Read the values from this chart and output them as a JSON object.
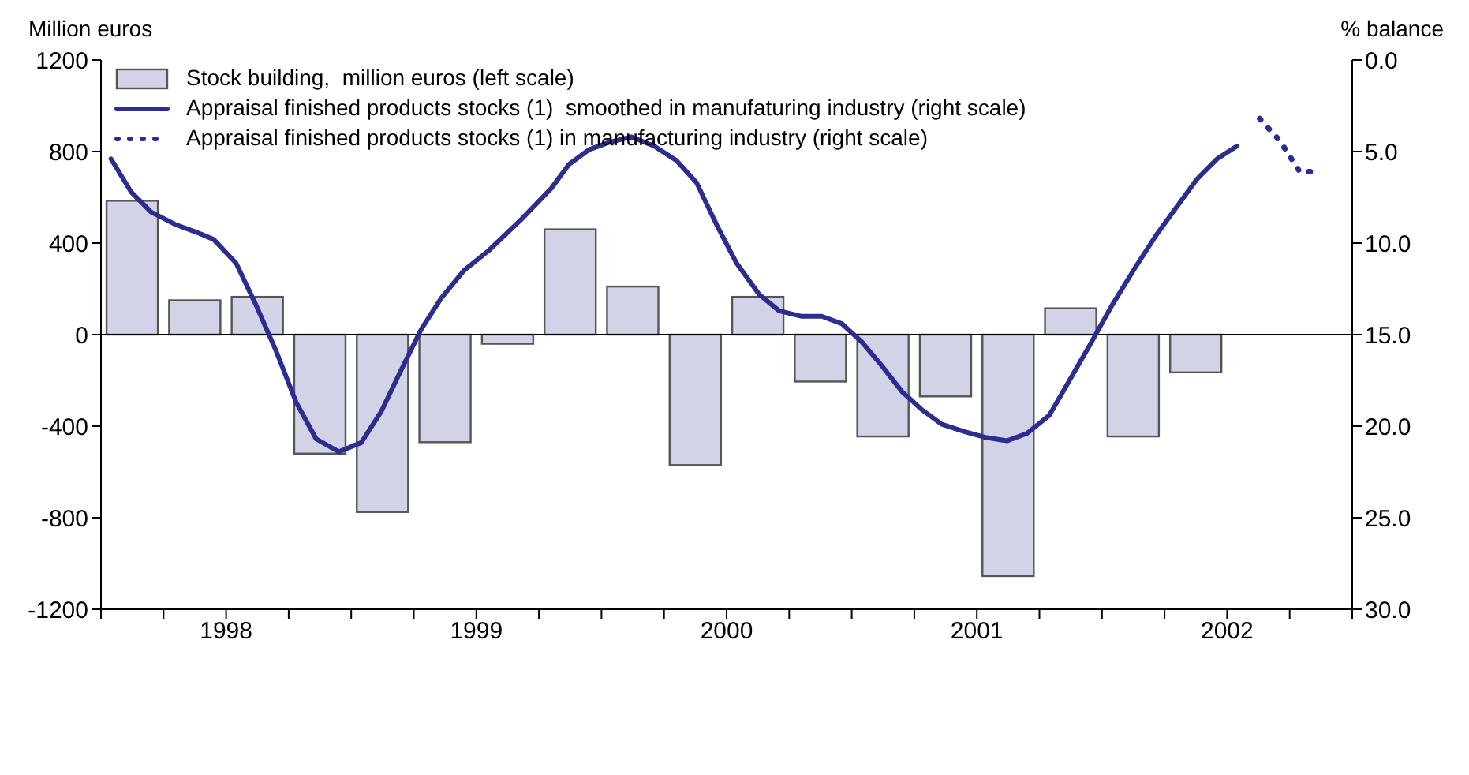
{
  "chart_data": {
    "type": "bar",
    "ylabel": "Million euros",
    "y2label": "% balance",
    "xlim": [
      1998,
      2003
    ],
    "xticks": [
      {
        "value": 1998,
        "label": null
      },
      {
        "value": 1998.25,
        "label": null
      },
      {
        "value": 1998.5,
        "label": "1998"
      },
      {
        "value": 1998.75,
        "label": null
      },
      {
        "value": 1999,
        "label": null
      },
      {
        "value": 1999.25,
        "label": null
      },
      {
        "value": 1999.5,
        "label": "1999"
      },
      {
        "value": 1999.75,
        "label": null
      },
      {
        "value": 2000,
        "label": null
      },
      {
        "value": 2000.25,
        "label": null
      },
      {
        "value": 2000.5,
        "label": "2000"
      },
      {
        "value": 2000.75,
        "label": null
      },
      {
        "value": 2001,
        "label": null
      },
      {
        "value": 2001.25,
        "label": null
      },
      {
        "value": 2001.5,
        "label": "2001"
      },
      {
        "value": 2001.75,
        "label": null
      },
      {
        "value": 2002,
        "label": null
      },
      {
        "value": 2002.25,
        "label": null
      },
      {
        "value": 2002.5,
        "label": "2002"
      },
      {
        "value": 2002.75,
        "label": null
      },
      {
        "value": 2003,
        "label": null
      }
    ],
    "ylim": [
      -1200,
      1200
    ],
    "yticks": [
      -1200,
      -800,
      -400,
      0,
      400,
      800,
      1200
    ],
    "y2lim": [
      30,
      0
    ],
    "y2ticks": [
      {
        "value": 0,
        "label": "0.0"
      },
      {
        "value": 5,
        "label": "5.0"
      },
      {
        "value": 10,
        "label": "10.0"
      },
      {
        "value": 15,
        "label": "15.0"
      },
      {
        "value": 20,
        "label": "20.0"
      },
      {
        "value": 25,
        "label": "25.0"
      },
      {
        "value": 30,
        "label": "30.0"
      }
    ],
    "legend": "top left",
    "marker": "none",
    "ref_lines": [
      {
        "axis": "y",
        "value": 0,
        "color": "#000000"
      }
    ],
    "series": [
      {
        "name": "Stock building,  million euros (left scale)",
        "color": "#d3d3e8",
        "x": [
          1998.125,
          1998.375,
          1998.625,
          1998.875,
          1999.125,
          1999.375,
          1999.625,
          1999.875,
          2000.125,
          2000.375,
          2000.625,
          2000.875,
          2001.125,
          2001.375,
          2001.625,
          2001.875,
          2002.125,
          2002.375
        ],
        "values": [
          585,
          150,
          165,
          -520,
          -775,
          -470,
          -40,
          460,
          210,
          -570,
          165,
          -205,
          -445,
          -270,
          -1055,
          115,
          -445,
          -165
        ]
      },
      {
        "type": "line",
        "axis": "y2",
        "line_style": "solid",
        "name": "Appraisal finished products stocks (1)  smoothed in manufaturing industry (right scale)",
        "color": "#2b2e8f",
        "x": [
          1998.04,
          1998.12,
          1998.2,
          1998.3,
          1998.38,
          1998.45,
          1998.54,
          1998.62,
          1998.7,
          1998.78,
          1998.86,
          1998.95,
          1999.04,
          1999.12,
          1999.19,
          1999.28,
          1999.36,
          1999.45,
          1999.55,
          1999.68,
          1999.8,
          1999.87,
          1999.95,
          2000.03,
          2000.12,
          2000.21,
          2000.3,
          2000.38,
          2000.46,
          2000.54,
          2000.63,
          2000.71,
          2000.8,
          2000.88,
          2000.96,
          2001.04,
          2001.12,
          2001.2,
          2001.28,
          2001.36,
          2001.45,
          2001.53,
          2001.62,
          2001.7,
          2001.79,
          2001.87,
          2001.95,
          2002.04,
          2002.13,
          2002.22,
          2002.3,
          2002.38,
          2002.46,
          2002.54
        ],
        "values": [
          5.4,
          7.2,
          8.3,
          9.0,
          9.4,
          9.8,
          11.1,
          13.4,
          15.9,
          18.7,
          20.7,
          21.4,
          20.9,
          19.2,
          17.2,
          14.7,
          13.0,
          11.5,
          10.4,
          8.7,
          7.0,
          5.7,
          4.9,
          4.5,
          4.2,
          4.7,
          5.5,
          6.7,
          9.0,
          11.1,
          12.8,
          13.7,
          14.0,
          14.0,
          14.4,
          15.4,
          16.7,
          18.1,
          19.1,
          19.9,
          20.3,
          20.6,
          20.8,
          20.4,
          19.4,
          17.5,
          15.6,
          13.4,
          11.4,
          9.5,
          8.0,
          6.5,
          5.4,
          4.7
        ]
      },
      {
        "type": "line",
        "axis": "y2",
        "line_style": "dotted",
        "name": "Appraisal finished products stocks (1) in manufacturing industry (right scale)",
        "color": "#2b2e8f",
        "x": [
          2002.63,
          2002.71,
          2002.79,
          2002.86
        ],
        "values": [
          3.2,
          4.4,
          6.1,
          6.1
        ]
      }
    ]
  }
}
